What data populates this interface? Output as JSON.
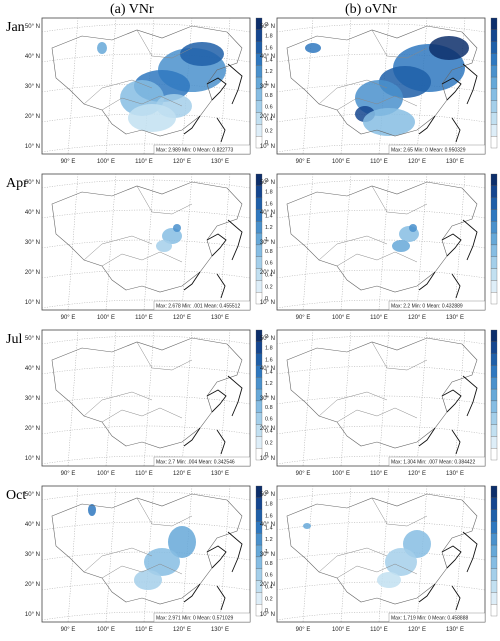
{
  "columns": [
    {
      "title": "(a) VNr"
    },
    {
      "title": "(b) oVNr"
    }
  ],
  "rows": [
    {
      "label": "Jan"
    },
    {
      "label": "Apr"
    },
    {
      "label": "Jul"
    },
    {
      "label": "Oct"
    }
  ],
  "lat_labels": [
    "50° N",
    "40° N",
    "30° N",
    "20° N",
    "10° N"
  ],
  "lon_labels": [
    "90° E",
    "100° E",
    "110° E",
    "120° E",
    "130° E"
  ],
  "colorbar_ticks": [
    "2",
    "1.8",
    "1.6",
    "1.4",
    "1.2",
    "1",
    "0.8",
    "0.6",
    "0.4",
    "0.2",
    "0"
  ],
  "colorbar_colors": [
    "#0d2f6b",
    "#15468f",
    "#1f5fa8",
    "#2f78bf",
    "#4a91cc",
    "#66a8d8",
    "#86bde3",
    "#a4cfea",
    "#c2e0f1",
    "#deeef8",
    "#ffffff"
  ],
  "panels": [
    {
      "row": 0,
      "col": 0,
      "max": "Max: 2.989",
      "min": "Min: 0",
      "mean": "Mean: 0.822773"
    },
    {
      "row": 0,
      "col": 1,
      "max": "Max: 2.65",
      "min": "Min: 0",
      "mean": "Mean: 0.950329"
    },
    {
      "row": 1,
      "col": 0,
      "max": "Max: 2.678",
      "min": "Min: .001",
      "mean": "Mean: 0.455512"
    },
    {
      "row": 1,
      "col": 1,
      "max": "Max: 2.2",
      "min": "Min: 0",
      "mean": "Mean: 0.432889"
    },
    {
      "row": 2,
      "col": 0,
      "max": "Max: 2.7",
      "min": "Min: .004",
      "mean": "Mean: 0.342546"
    },
    {
      "row": 2,
      "col": 1,
      "max": "Max: 1.304",
      "min": "Min: .007",
      "mean": "Mean: 0.384422"
    },
    {
      "row": 3,
      "col": 0,
      "max": "Max: 2.971",
      "min": "Min: 0",
      "mean": "Mean: 0.571029"
    },
    {
      "row": 3,
      "col": 1,
      "max": "Max: 1.719",
      "min": "Min: 0",
      "mean": "Mean: 0.458888"
    }
  ]
}
